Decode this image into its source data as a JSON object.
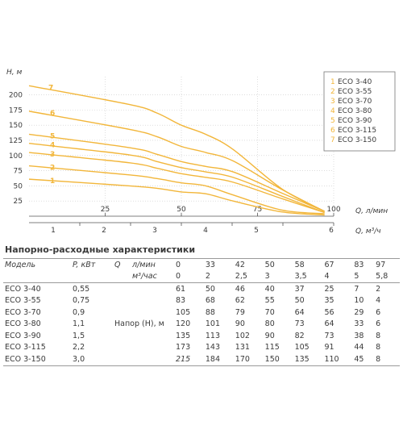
{
  "chart_data": {
    "type": "line",
    "ylabel": "H, м",
    "xlabel_primary": "Q, л/мин",
    "xlabel_secondary": "Q, м³/ч",
    "y_ticks": [
      25,
      50,
      75,
      100,
      125,
      150,
      175,
      200
    ],
    "x_ticks_primary": [
      25,
      50,
      75,
      100
    ],
    "x_ticks_secondary": [
      1,
      2,
      3,
      4,
      5,
      6
    ],
    "ylim": [
      0,
      230
    ],
    "xlim": [
      0,
      100
    ],
    "legend_position": "top-right",
    "curve_color": "#f2b63a",
    "series": [
      {
        "name": "ECO 3-40",
        "num": "1",
        "x": [
          0,
          33,
          42,
          50,
          58,
          67,
          83,
          97
        ],
        "values": [
          61,
          50,
          46,
          40,
          37,
          25,
          7,
          2
        ]
      },
      {
        "name": "ECO 3-55",
        "num": "2",
        "x": [
          0,
          33,
          42,
          50,
          58,
          67,
          83,
          97
        ],
        "values": [
          83,
          68,
          62,
          55,
          50,
          35,
          10,
          4
        ]
      },
      {
        "name": "ECO 3-70",
        "num": "3",
        "x": [
          0,
          33,
          42,
          50,
          58,
          67,
          83,
          97
        ],
        "values": [
          105,
          88,
          79,
          70,
          64,
          56,
          29,
          6
        ]
      },
      {
        "name": "ECO 3-80",
        "num": "4",
        "x": [
          0,
          33,
          42,
          50,
          58,
          67,
          83,
          97
        ],
        "values": [
          120,
          101,
          90,
          80,
          73,
          64,
          33,
          6
        ]
      },
      {
        "name": "ECO 3-90",
        "num": "5",
        "x": [
          0,
          33,
          42,
          50,
          58,
          67,
          83,
          97
        ],
        "values": [
          135,
          113,
          102,
          90,
          82,
          73,
          38,
          8
        ]
      },
      {
        "name": "ECO 3-115",
        "num": "6",
        "x": [
          0,
          33,
          42,
          50,
          58,
          67,
          83,
          97
        ],
        "values": [
          173,
          143,
          131,
          115,
          105,
          91,
          44,
          8
        ]
      },
      {
        "name": "ECO 3-150",
        "num": "7",
        "x": [
          0,
          33,
          42,
          50,
          58,
          67,
          83,
          97
        ],
        "values": [
          215,
          184,
          170,
          150,
          135,
          110,
          45,
          8
        ]
      }
    ]
  },
  "table": {
    "title": "Напорно-расходные характеристики",
    "col_model": "Модель",
    "col_power": "P, кВт",
    "col_q": "Q",
    "unit_lmin": "л/мин",
    "unit_m3h": "м³/час",
    "q_lmin": [
      "0",
      "33",
      "42",
      "50",
      "58",
      "67",
      "83",
      "97"
    ],
    "q_m3h": [
      "0",
      "2",
      "2,5",
      "3",
      "3,5",
      "4",
      "5",
      "5,8"
    ],
    "head_label": "Напор (Н), м",
    "rows": [
      {
        "model": "ECO 3-40",
        "power": "0,55",
        "heads": [
          "61",
          "50",
          "46",
          "40",
          "37",
          "25",
          "7",
          "2"
        ]
      },
      {
        "model": "ECO 3-55",
        "power": "0,75",
        "heads": [
          "83",
          "68",
          "62",
          "55",
          "50",
          "35",
          "10",
          "4"
        ]
      },
      {
        "model": "ECO 3-70",
        "power": "0,9",
        "heads": [
          "105",
          "88",
          "79",
          "70",
          "64",
          "56",
          "29",
          "6"
        ]
      },
      {
        "model": "ECO 3-80",
        "power": "1,1",
        "heads": [
          "120",
          "101",
          "90",
          "80",
          "73",
          "64",
          "33",
          "6"
        ]
      },
      {
        "model": "ECO 3-90",
        "power": "1,5",
        "heads": [
          "135",
          "113",
          "102",
          "90",
          "82",
          "73",
          "38",
          "8"
        ]
      },
      {
        "model": "ECO 3-115",
        "power": "2,2",
        "heads": [
          "173",
          "143",
          "131",
          "115",
          "105",
          "91",
          "44",
          "8"
        ]
      },
      {
        "model": "ECO 3-150",
        "power": "3,0",
        "heads": [
          "215",
          "184",
          "170",
          "150",
          "135",
          "110",
          "45",
          "8"
        ]
      }
    ]
  }
}
